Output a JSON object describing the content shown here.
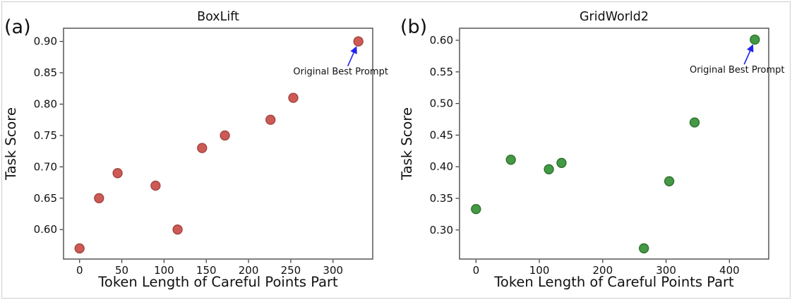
{
  "figure": {
    "background": "#ffffff",
    "border_color": "#cdcdcd"
  },
  "chart_data": [
    {
      "type": "scatter",
      "panel_label": "(a)",
      "title": "BoxLift",
      "xlabel": "Token Length of Careful Points Part",
      "ylabel": "Task Score",
      "xlim": [
        -19,
        347
      ],
      "ylim": [
        0.553,
        0.921
      ],
      "xticks": [
        0,
        50,
        100,
        150,
        200,
        250,
        300
      ],
      "xtick_labels": [
        "0",
        "50",
        "100",
        "150",
        "200",
        "250",
        "300"
      ],
      "yticks": [
        0.6,
        0.65,
        0.7,
        0.75,
        0.8,
        0.85,
        0.9
      ],
      "ytick_labels": [
        "0.60",
        "0.65",
        "0.70",
        "0.75",
        "0.80",
        "0.85",
        "0.90"
      ],
      "grid": false,
      "legend": null,
      "marker_color": "#cd5a55",
      "marker_edge_color": "#9d423d",
      "points": [
        [
          0,
          0.57
        ],
        [
          23,
          0.65
        ],
        [
          45,
          0.69
        ],
        [
          90,
          0.67
        ],
        [
          116,
          0.6
        ],
        [
          145,
          0.73
        ],
        [
          172,
          0.75
        ],
        [
          226,
          0.775
        ],
        [
          253,
          0.81
        ],
        [
          330,
          0.9
        ]
      ],
      "annotation": {
        "text": "Original Best Prompt",
        "arrow_color": "#2222ee",
        "points_to": [
          330,
          0.9
        ]
      }
    },
    {
      "type": "scatter",
      "panel_label": "(b)",
      "title": "GridWorld2",
      "xlabel": "Token Length of Careful Points Part",
      "ylabel": "Task Score",
      "xlim": [
        -26,
        462
      ],
      "ylim": [
        0.254,
        0.619
      ],
      "xticks": [
        0,
        100,
        200,
        300,
        400
      ],
      "xtick_labels": [
        "0",
        "100",
        "200",
        "300",
        "400"
      ],
      "yticks": [
        0.3,
        0.35,
        0.4,
        0.45,
        0.5,
        0.55,
        0.6
      ],
      "ytick_labels": [
        "0.30",
        "0.35",
        "0.40",
        "0.45",
        "0.50",
        "0.55",
        "0.60"
      ],
      "grid": false,
      "legend": null,
      "marker_color": "#449944",
      "marker_edge_color": "#2b6e2b",
      "points": [
        [
          0,
          0.333
        ],
        [
          55,
          0.411
        ],
        [
          115,
          0.396
        ],
        [
          135,
          0.406
        ],
        [
          265,
          0.271
        ],
        [
          305,
          0.377
        ],
        [
          345,
          0.47
        ],
        [
          440,
          0.601
        ]
      ],
      "annotation": {
        "text": "Original Best Prompt",
        "arrow_color": "#2222ee",
        "points_to": [
          440,
          0.601
        ]
      }
    }
  ]
}
